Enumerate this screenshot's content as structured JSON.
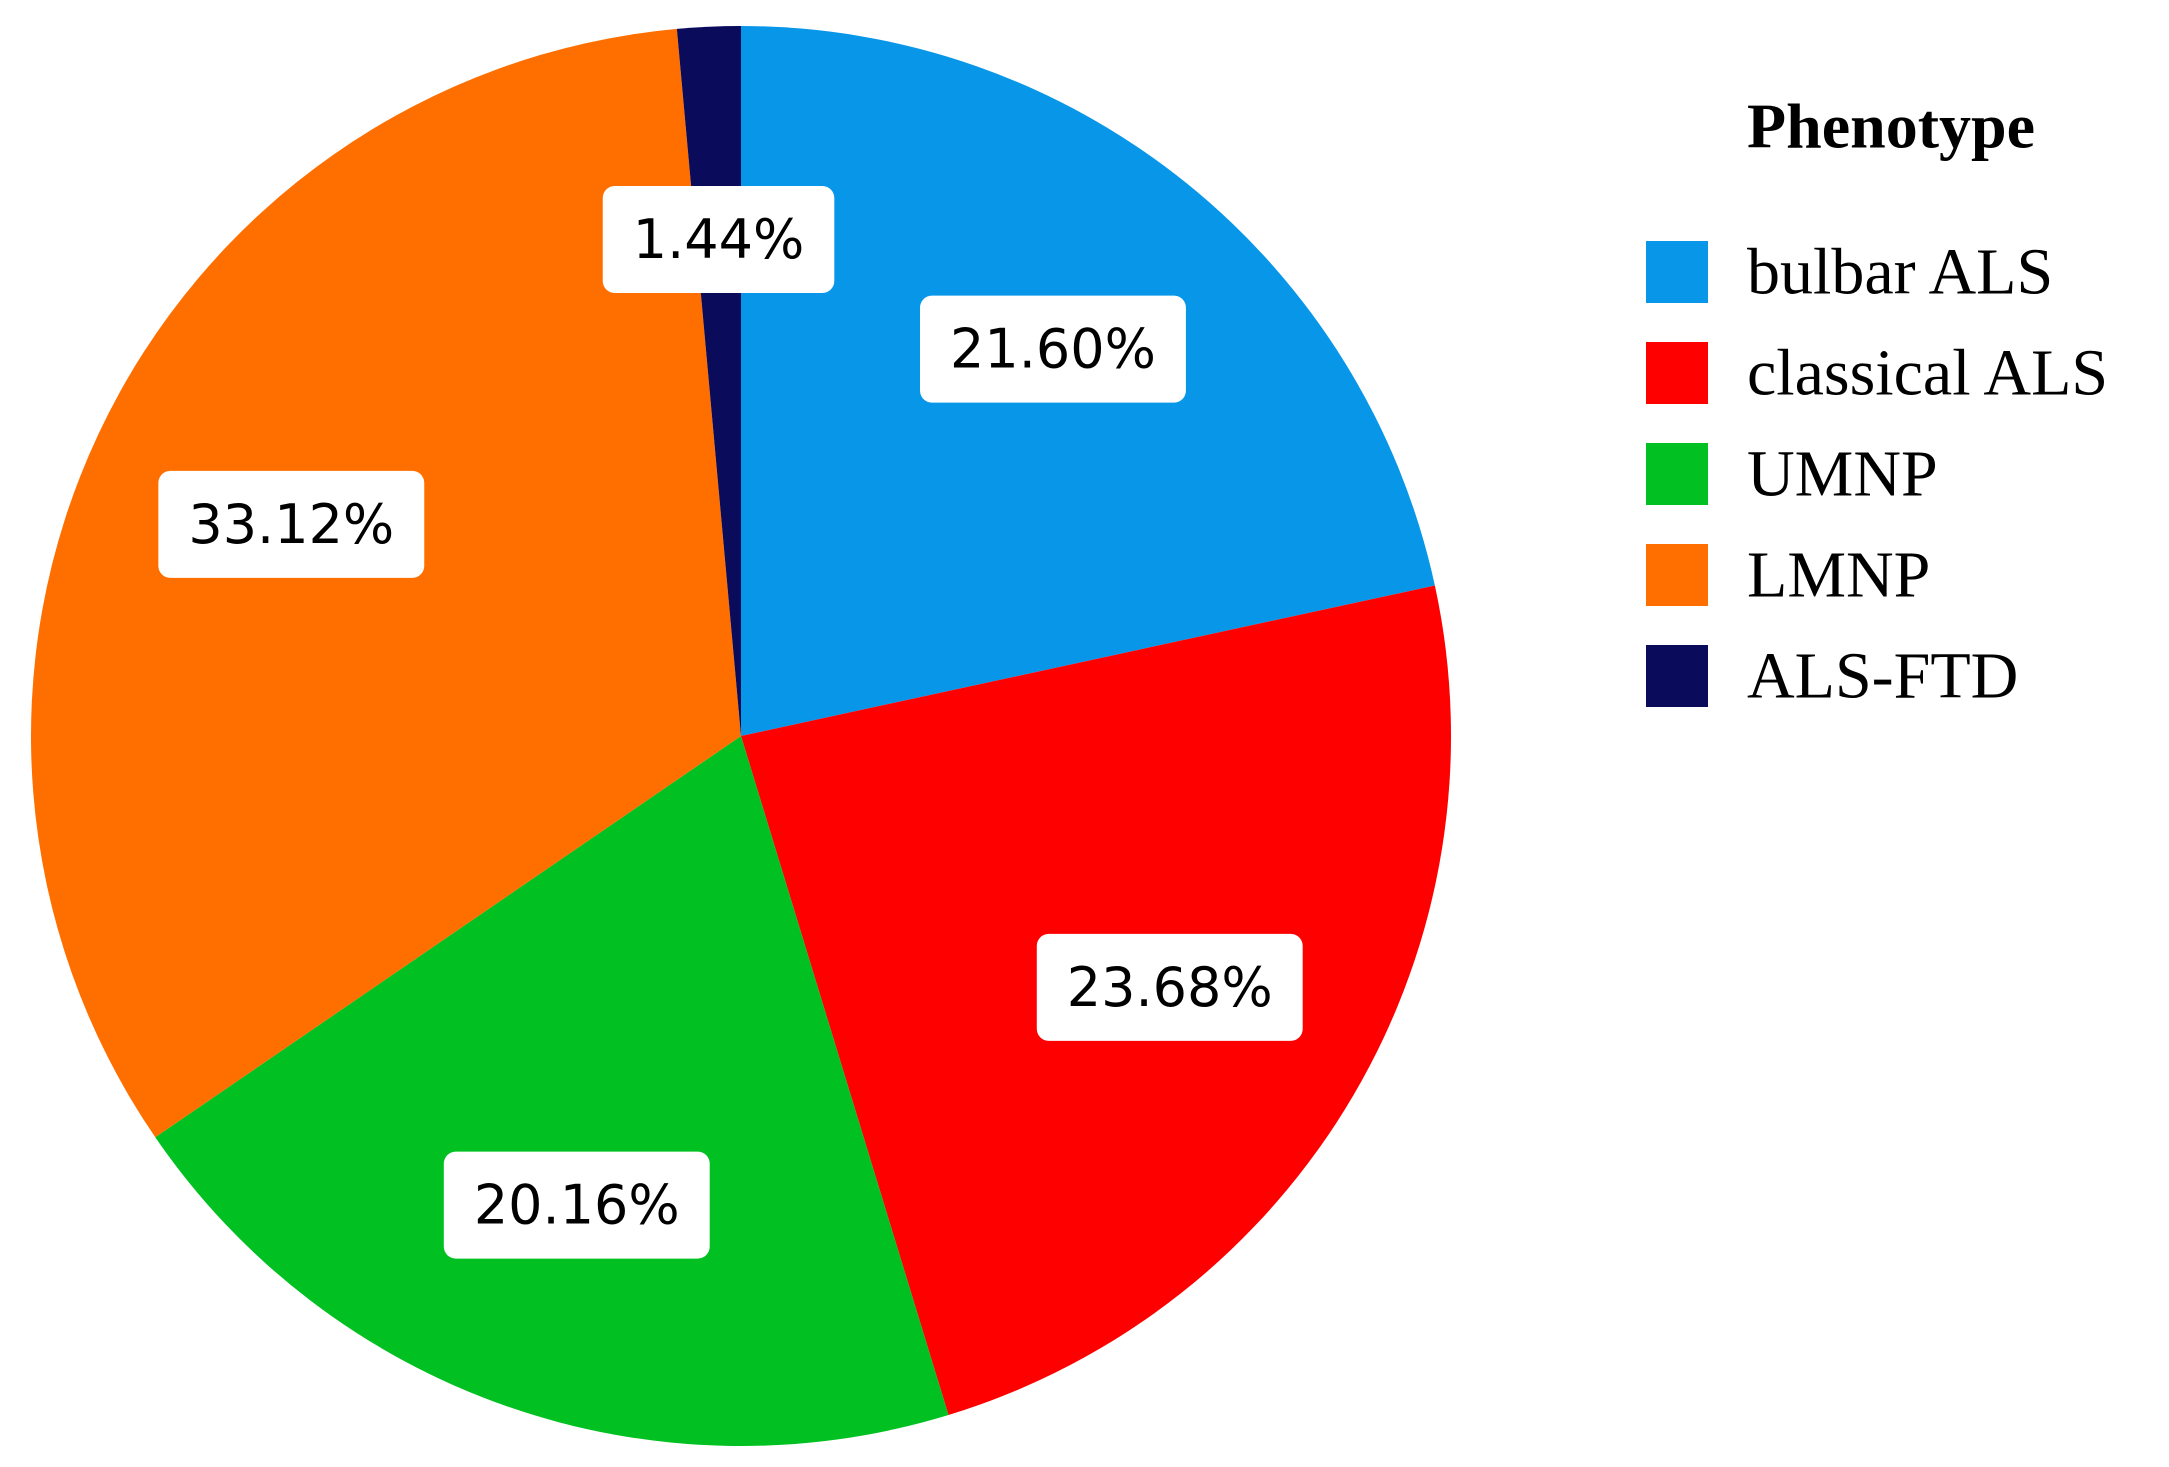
{
  "chart_data": {
    "type": "pie",
    "legend_title": "Phenotype",
    "categories": [
      "bulbar ALS",
      "classical ALS",
      "UMNP",
      "LMNP",
      "ALS-FTD"
    ],
    "values": [
      21.6,
      23.68,
      20.16,
      33.12,
      1.44
    ],
    "value_labels": [
      "21.60%",
      "23.68%",
      "20.16%",
      "33.12%",
      "1.44%"
    ],
    "colors": [
      "#0897e8",
      "#ff0000",
      "#00c121",
      "#ff6f00",
      "#0b0b5c"
    ],
    "legend": "right"
  }
}
